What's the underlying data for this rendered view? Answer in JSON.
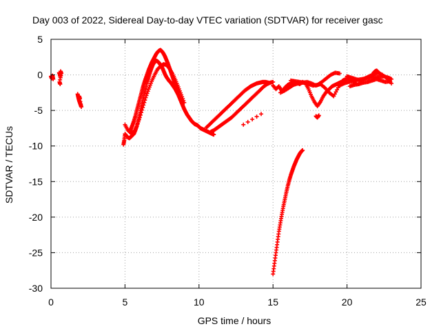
{
  "chart_data": {
    "type": "scatter",
    "title": "Day 003 of 2022, Sidereal Day-to-day VTEC variation (SDTVAR) for receiver gasc",
    "xlabel": "GPS time / hours",
    "ylabel": "SDTVAR / TECUs",
    "xlim": [
      0,
      25
    ],
    "ylim": [
      -30,
      5
    ],
    "xticks": [
      0,
      5,
      10,
      15,
      20,
      25
    ],
    "yticks": [
      5,
      0,
      -5,
      -10,
      -15,
      -20,
      -25,
      -30
    ],
    "grid": true,
    "marker": "plus",
    "color": "#ff0000",
    "series": [
      {
        "name": "SDTVAR",
        "segments": [
          {
            "x": [
              0.0,
              0.05,
              0.1,
              0.15
            ],
            "y": [
              -0.2,
              -0.5,
              -0.1,
              -0.6
            ]
          },
          {
            "x": [
              0.55,
              0.6,
              0.62,
              0.65,
              0.7,
              0.58,
              0.62
            ],
            "y": [
              0.3,
              0.1,
              -0.2,
              0.5,
              0.2,
              -1.0,
              -1.3
            ]
          },
          {
            "x": [
              1.8,
              1.85,
              1.9,
              1.95,
              2.0,
              2.05,
              1.9,
              1.95
            ],
            "y": [
              -2.7,
              -3.2,
              -3.6,
              -3.9,
              -4.2,
              -4.5,
              -3.0,
              -3.3
            ]
          },
          {
            "x": [
              4.9,
              4.95,
              5.0,
              5.1,
              5.2,
              5.3,
              5.4,
              5.5,
              5.6,
              5.7,
              5.8,
              5.9,
              6.0,
              6.1,
              6.2,
              6.3,
              6.4,
              6.5,
              6.6,
              6.7,
              6.8,
              6.9,
              7.0,
              7.1,
              7.2,
              7.3,
              7.4,
              7.5,
              7.6,
              7.7,
              7.8,
              7.9,
              8.0,
              8.1,
              8.2,
              8.3,
              8.4,
              8.5,
              8.6,
              8.7,
              8.8,
              8.9,
              9.0,
              9.1,
              9.2,
              9.3,
              9.4,
              9.5,
              9.6,
              9.7,
              9.8,
              9.9,
              10.0,
              10.1,
              10.2,
              10.3,
              10.4,
              10.5,
              10.6,
              10.7,
              10.8,
              10.9,
              11.0
            ],
            "y": [
              -9.8,
              -9.2,
              -8.3,
              -8.6,
              -8.8,
              -8.9,
              -8.7,
              -8.5,
              -8.3,
              -7.8,
              -7.2,
              -6.4,
              -5.5,
              -4.5,
              -3.6,
              -2.7,
              -1.9,
              -1.0,
              -0.3,
              0.4,
              1.0,
              1.5,
              1.8,
              2.0,
              1.9,
              1.7,
              1.4,
              1.1,
              0.6,
              0.1,
              -0.3,
              -0.6,
              -0.9,
              -1.1,
              -1.4,
              -1.7,
              -2.0,
              -2.4,
              -2.8,
              -3.3,
              -3.8,
              -4.3,
              -4.8,
              -5.2,
              -5.6,
              -5.9,
              -6.2,
              -6.5,
              -6.7,
              -6.9,
              -7.0,
              -7.1,
              -7.3,
              -7.5,
              -7.6,
              -7.7,
              -7.8,
              -7.9,
              -8.0,
              -8.1,
              -8.2,
              -8.3,
              -8.4
            ]
          },
          {
            "x": [
              5.3,
              5.4,
              5.5,
              5.6,
              5.7,
              5.8,
              5.9,
              6.0,
              6.1,
              6.2,
              6.3,
              6.4,
              6.5,
              6.6,
              6.7,
              6.8,
              6.9,
              7.0,
              7.1,
              7.2,
              7.3,
              7.4,
              7.5,
              7.6,
              7.7,
              7.8,
              7.9,
              8.0,
              8.1,
              8.2,
              8.3,
              8.4,
              8.5,
              8.6
            ],
            "y": [
              -8.0,
              -7.6,
              -7.1,
              -6.5,
              -5.8,
              -5.0,
              -4.2,
              -3.4,
              -2.6,
              -1.8,
              -1.1,
              -0.5,
              0.1,
              0.7,
              1.2,
              1.7,
              2.1,
              2.5,
              2.9,
              3.2,
              3.4,
              3.5,
              3.3,
              3.0,
              2.6,
              2.1,
              1.6,
              1.0,
              0.4,
              -0.2,
              -0.8,
              -1.3,
              -1.9,
              -2.5
            ]
          },
          {
            "x": [
              5.0,
              5.2,
              5.4,
              5.6,
              5.8,
              6.0,
              6.2,
              6.4,
              6.6,
              6.8,
              7.0,
              7.2,
              7.4,
              7.6,
              7.8,
              8.0,
              8.2,
              8.4,
              8.6,
              8.8,
              9.0
            ],
            "y": [
              -7.0,
              -7.8,
              -8.2,
              -8.0,
              -7.2,
              -6.0,
              -4.6,
              -3.2,
              -2.0,
              -0.9,
              0.0,
              0.8,
              1.2,
              1.5,
              1.4,
              0.9,
              0.2,
              -0.7,
              -1.7,
              -2.8,
              -3.9
            ]
          },
          {
            "x": [
              10.5,
              10.7,
              10.9,
              11.1,
              11.3,
              11.5,
              11.7,
              11.9,
              12.1,
              12.3,
              12.5,
              12.7,
              12.9,
              13.1,
              13.3,
              13.5,
              13.7,
              13.9,
              14.1,
              14.3,
              14.5,
              14.7
            ],
            "y": [
              -7.4,
              -7.0,
              -6.6,
              -6.2,
              -5.8,
              -5.4,
              -5.0,
              -4.6,
              -4.2,
              -3.8,
              -3.4,
              -3.0,
              -2.6,
              -2.2,
              -1.9,
              -1.6,
              -1.4,
              -1.2,
              -1.1,
              -1.0,
              -1.0,
              -1.1
            ]
          },
          {
            "x": [
              10.8,
              11.0,
              11.2,
              11.4,
              11.6,
              11.8,
              12.0,
              12.2,
              12.4,
              12.6,
              12.8,
              13.0,
              13.2,
              13.4,
              13.6,
              13.8,
              14.0,
              14.2,
              14.4,
              14.6,
              14.8,
              15.0
            ],
            "y": [
              -8.0,
              -7.8,
              -7.5,
              -7.2,
              -6.9,
              -6.6,
              -6.3,
              -6.0,
              -5.6,
              -5.2,
              -4.8,
              -4.4,
              -4.0,
              -3.6,
              -3.2,
              -2.8,
              -2.4,
              -2.0,
              -1.6,
              -1.3,
              -1.1,
              -1.0
            ]
          },
          {
            "x": [
              13.0,
              14.2
            ],
            "y": [
              -7.0,
              -5.5
            ]
          },
          {
            "x": [
              15.0,
              15.1,
              15.2,
              15.3,
              15.4,
              15.5,
              15.6,
              15.7,
              15.8,
              15.9,
              16.0,
              16.1,
              16.2,
              16.3,
              16.4,
              16.5,
              16.6,
              16.7,
              16.8,
              16.9,
              17.0
            ],
            "y": [
              -28.0,
              -26.5,
              -25.0,
              -23.5,
              -22.0,
              -20.8,
              -19.6,
              -18.5,
              -17.5,
              -16.5,
              -15.6,
              -14.8,
              -14.1,
              -13.5,
              -12.9,
              -12.4,
              -11.9,
              -11.5,
              -11.1,
              -10.8,
              -10.6
            ]
          },
          {
            "x": [
              15.0,
              15.2,
              15.4,
              15.6,
              15.8,
              16.0,
              16.2,
              16.4,
              16.6,
              16.8,
              17.0,
              17.2,
              17.4,
              17.6,
              17.8,
              18.0,
              18.2,
              18.4,
              18.6,
              18.8,
              19.0,
              19.2,
              19.4,
              19.6,
              19.8,
              20.0
            ],
            "y": [
              -1.5,
              -2.0,
              -1.6,
              -2.3,
              -1.8,
              -1.4,
              -1.2,
              -1.0,
              -1.1,
              -1.3,
              -1.0,
              -1.2,
              -2.0,
              -3.0,
              -3.8,
              -4.4,
              -3.8,
              -3.0,
              -2.4,
              -2.0,
              -1.6,
              -1.4,
              -1.2,
              -1.0,
              -0.8,
              -0.7
            ]
          },
          {
            "x": [
              15.5,
              15.8,
              16.1,
              16.4,
              16.7,
              17.0,
              17.3,
              17.6,
              17.9,
              18.2,
              18.5,
              18.8,
              19.1,
              19.4,
              19.7,
              20.0,
              20.3,
              20.6
            ],
            "y": [
              -2.5,
              -2.2,
              -1.8,
              -1.4,
              -1.2,
              -1.1,
              -1.0,
              -1.2,
              -1.5,
              -1.3,
              -1.8,
              -2.5,
              -3.0,
              -1.8,
              -0.8,
              -0.5,
              -0.6,
              -1.2
            ]
          },
          {
            "x": [
              16.2,
              16.5,
              16.8,
              17.1,
              17.4,
              17.7,
              18.0,
              18.3,
              18.6,
              18.9,
              19.2,
              19.5
            ],
            "y": [
              -0.8,
              -0.9,
              -1.0,
              -1.1,
              -1.3,
              -1.5,
              -1.4,
              -1.0,
              -0.5,
              0.0,
              0.3,
              0.2
            ]
          },
          {
            "x": [
              17.9,
              18.0,
              18.1
            ],
            "y": [
              -5.8,
              -6.0,
              -5.7
            ]
          },
          {
            "x": [
              19.5,
              19.8,
              20.1,
              20.4,
              20.7,
              21.0,
              21.3,
              21.6,
              21.9,
              22.2,
              22.5,
              22.8,
              23.0
            ],
            "y": [
              -1.5,
              -1.2,
              -1.0,
              -0.9,
              -0.7,
              -0.6,
              -0.5,
              -0.4,
              -0.3,
              -0.3,
              -0.2,
              -0.4,
              -0.6
            ]
          },
          {
            "x": [
              20.0,
              20.3,
              20.6,
              20.9,
              21.2,
              21.5,
              21.8,
              22.1,
              22.4,
              22.7,
              23.0
            ],
            "y": [
              -0.2,
              -0.4,
              -0.6,
              -0.8,
              -0.5,
              -0.2,
              0.1,
              0.3,
              0.0,
              -0.5,
              -1.2
            ]
          },
          {
            "x": [
              20.2,
              20.5,
              20.8,
              21.1,
              21.4,
              21.7,
              22.0,
              22.3,
              22.6,
              22.9
            ],
            "y": [
              -1.6,
              -1.4,
              -1.3,
              -1.1,
              -1.0,
              -0.8,
              -0.6,
              -0.8,
              -1.0,
              -0.9
            ]
          },
          {
            "x": [
              21.8,
              21.9,
              22.0,
              22.1,
              22.2
            ],
            "y": [
              0.3,
              0.5,
              0.6,
              0.4,
              0.2
            ]
          }
        ]
      }
    ]
  }
}
